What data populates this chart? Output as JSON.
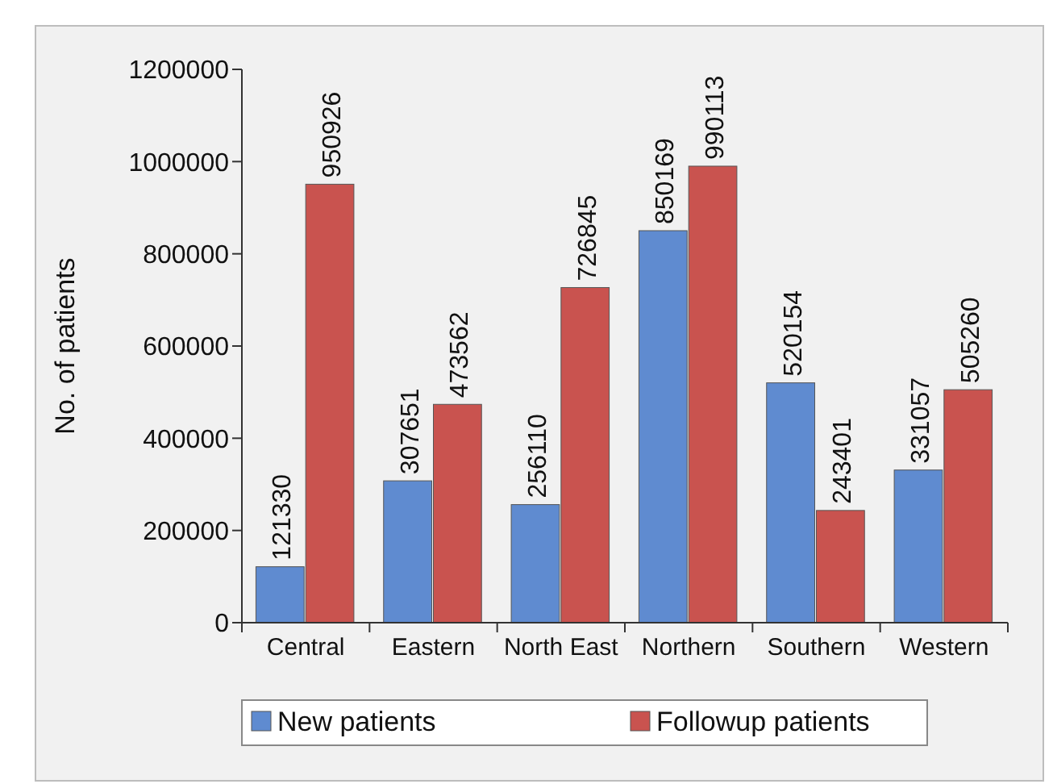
{
  "chart_data": {
    "type": "bar",
    "ylabel": "No. of patients",
    "categories": [
      "Central",
      "Eastern",
      "North East",
      "Northern",
      "Southern",
      "Western"
    ],
    "series": [
      {
        "name": "New patients",
        "color": "#5f8bd0",
        "values": [
          121330,
          307651,
          256110,
          850169,
          520154,
          331057
        ]
      },
      {
        "name": "Followup patients",
        "color": "#c9534f",
        "values": [
          950926,
          473562,
          726845,
          990113,
          243401,
          505260
        ]
      }
    ],
    "ylim": [
      0,
      1200000
    ],
    "yticks": [
      0,
      200000,
      400000,
      600000,
      800000,
      1000000,
      1200000
    ],
    "data_labels": true,
    "grid": false,
    "legend": "bottom"
  }
}
